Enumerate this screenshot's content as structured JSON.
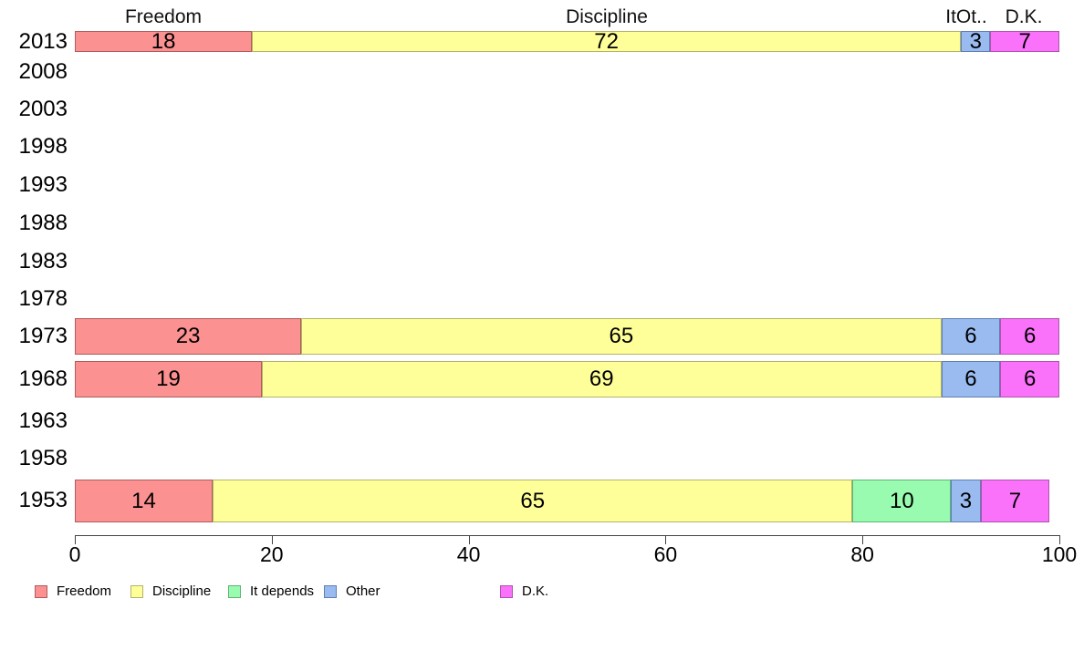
{
  "chart_data": {
    "type": "bar",
    "orientation": "horizontal",
    "stacked": true,
    "title": "",
    "x_axis": {
      "range": [
        0,
        100
      ],
      "ticks": [
        0,
        20,
        40,
        60,
        80,
        100
      ]
    },
    "series": [
      "Freedom",
      "Discipline",
      "It depends",
      "Other",
      "D.K."
    ],
    "colors": {
      "Freedom": {
        "fill": "#FB9191",
        "border": "#B05C5C"
      },
      "Discipline": {
        "fill": "#FFFF99",
        "border": "#B3B36B"
      },
      "It depends": {
        "fill": "#99FBAF",
        "border": "#5FB377"
      },
      "Other": {
        "fill": "#99BBF0",
        "border": "#5F7FB3"
      },
      "D.K.": {
        "fill": "#FA72FA",
        "border": "#B052B0"
      }
    },
    "top_labels": [
      {
        "text": "Freedom",
        "x": 179
      },
      {
        "text": "Discipline",
        "x": 665
      },
      {
        "text": "ItOt..",
        "x": 1059
      },
      {
        "text": "D.K.",
        "x": 1122
      }
    ],
    "rows": [
      {
        "year": "2013",
        "segments": [
          {
            "series": "Freedom",
            "value": 18
          },
          {
            "series": "Discipline",
            "value": 72
          },
          {
            "series": "Other",
            "value": 3
          },
          {
            "series": "D.K.",
            "value": 7
          }
        ]
      },
      {
        "year": "2008",
        "segments": []
      },
      {
        "year": "2003",
        "segments": []
      },
      {
        "year": "1998",
        "segments": []
      },
      {
        "year": "1993",
        "segments": []
      },
      {
        "year": "1988",
        "segments": []
      },
      {
        "year": "1983",
        "segments": []
      },
      {
        "year": "1978",
        "segments": []
      },
      {
        "year": "1973",
        "segments": [
          {
            "series": "Freedom",
            "value": 23
          },
          {
            "series": "Discipline",
            "value": 65
          },
          {
            "series": "Other",
            "value": 6
          },
          {
            "series": "D.K.",
            "value": 6
          }
        ]
      },
      {
        "year": "1968",
        "segments": [
          {
            "series": "Freedom",
            "value": 19
          },
          {
            "series": "Discipline",
            "value": 69
          },
          {
            "series": "Other",
            "value": 6
          },
          {
            "series": "D.K.",
            "value": 6
          }
        ]
      },
      {
        "year": "1963",
        "segments": []
      },
      {
        "year": "1958",
        "segments": []
      },
      {
        "year": "1953",
        "segments": [
          {
            "series": "Freedom",
            "value": 14
          },
          {
            "series": "Discipline",
            "value": 65
          },
          {
            "series": "It depends",
            "value": 10
          },
          {
            "series": "Other",
            "value": 3
          },
          {
            "series": "D.K.",
            "value": 7
          }
        ]
      }
    ],
    "legend": [
      "Freedom",
      "Discipline",
      "It depends",
      "Other",
      "D.K."
    ]
  }
}
